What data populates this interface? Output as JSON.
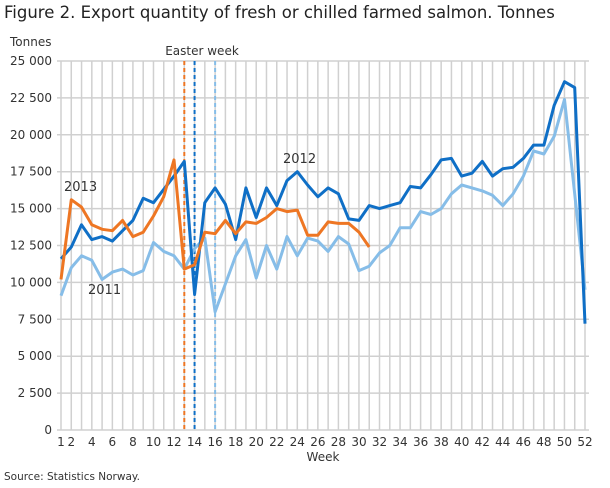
{
  "title": "Figure 2. Export quantity of fresh or chilled farmed salmon. Tonnes",
  "source": "Source: Statistics Norway.",
  "chart_data": {
    "type": "line",
    "ylabel": "Tonnes",
    "xlabel": "Week",
    "ylim": [
      0,
      25000
    ],
    "xlim": [
      1,
      52
    ],
    "yticks": [
      0,
      2500,
      5000,
      7500,
      10000,
      12500,
      15000,
      17500,
      20000,
      22500,
      25000
    ],
    "ytick_labels": [
      "0",
      "2 500",
      "5 000",
      "7 500",
      "10 000",
      "12 500",
      "15 000",
      "17 500",
      "20 000",
      "22 500",
      "25 000"
    ],
    "xticks": [
      1,
      2,
      4,
      6,
      8,
      10,
      12,
      14,
      16,
      18,
      20,
      22,
      24,
      26,
      28,
      30,
      32,
      34,
      36,
      38,
      40,
      42,
      44,
      46,
      48,
      50,
      52
    ],
    "grid": true,
    "annotation": "Easter week",
    "easter_weeks": [
      {
        "series": "2013",
        "week": 13
      },
      {
        "series": "2012",
        "week": 14
      },
      {
        "series": "2011",
        "week": 16
      }
    ],
    "series": [
      {
        "name": "2011",
        "color": "#86bde8",
        "values": [
          9100,
          11000,
          11800,
          11500,
          10200,
          10700,
          10900,
          10500,
          10800,
          12700,
          12100,
          11800,
          10900,
          12300,
          13000,
          8000,
          9900,
          11800,
          12900,
          10300,
          12500,
          10900,
          13100,
          11800,
          13000,
          12800,
          12100,
          13100,
          12600,
          10800,
          11100,
          12000,
          12500,
          13700,
          13700,
          14800,
          14600,
          15000,
          16000,
          16600,
          16400,
          16200,
          15900,
          15200,
          16000,
          17200,
          18900,
          18700,
          19900,
          22400,
          16000,
          9500
        ]
      },
      {
        "name": "2012",
        "color": "#0f6fc6",
        "values": [
          11600,
          12400,
          13900,
          12900,
          13100,
          12800,
          13500,
          14200,
          15700,
          15400,
          16300,
          17200,
          18200,
          9200,
          15400,
          16400,
          15300,
          12900,
          16400,
          14400,
          16400,
          15200,
          16900,
          17500,
          16600,
          15800,
          16400,
          16000,
          14300,
          14200,
          15200,
          15000,
          15200,
          15400,
          16500,
          16400,
          17300,
          18300,
          18400,
          17200,
          17400,
          18200,
          17200,
          17700,
          17800,
          18400,
          19300,
          19300,
          22000,
          23600,
          23200,
          7200
        ]
      },
      {
        "name": "2013",
        "color": "#ee7623",
        "values": [
          10200,
          15600,
          15100,
          13900,
          13600,
          13500,
          14200,
          13100,
          13400,
          14500,
          15800,
          18300,
          10900,
          11200,
          13400,
          13300,
          14200,
          13300,
          14100,
          14000,
          14400,
          15000,
          14800,
          14900,
          13200,
          13200,
          14100,
          14000,
          14000,
          13400,
          12400
        ]
      }
    ]
  }
}
